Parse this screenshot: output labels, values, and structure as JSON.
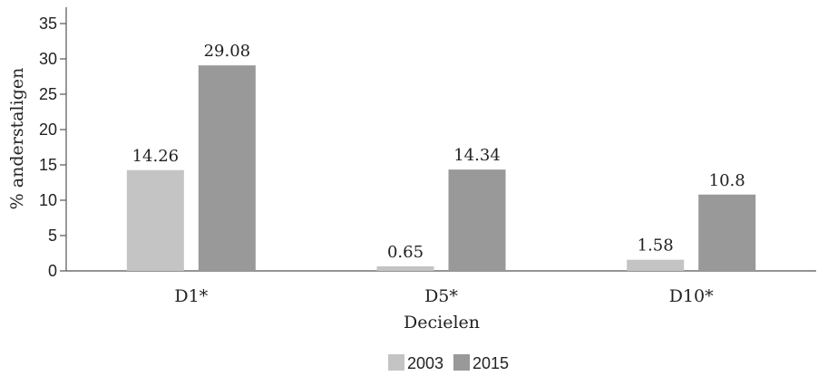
{
  "chart_data": {
    "type": "bar",
    "categories": [
      "D1*",
      "D5*",
      "D10*"
    ],
    "series": [
      {
        "name": "2003",
        "values": [
          14.26,
          0.65,
          1.58
        ],
        "labels": [
          "14.26",
          "0.65",
          "1.58"
        ],
        "color": "#c4c4c4"
      },
      {
        "name": "2015",
        "values": [
          29.08,
          14.34,
          10.8
        ],
        "labels": [
          "29.08",
          "14.34",
          "10.8"
        ],
        "color": "#999999"
      }
    ],
    "ylim": [
      0,
      35
    ],
    "yticks": [
      "0",
      "5",
      "10",
      "15",
      "20",
      "25",
      "30",
      "35"
    ],
    "xlabel": "Decielen",
    "ylabel": "% anderstaligen",
    "grid": false,
    "legend": "bottom-center"
  }
}
